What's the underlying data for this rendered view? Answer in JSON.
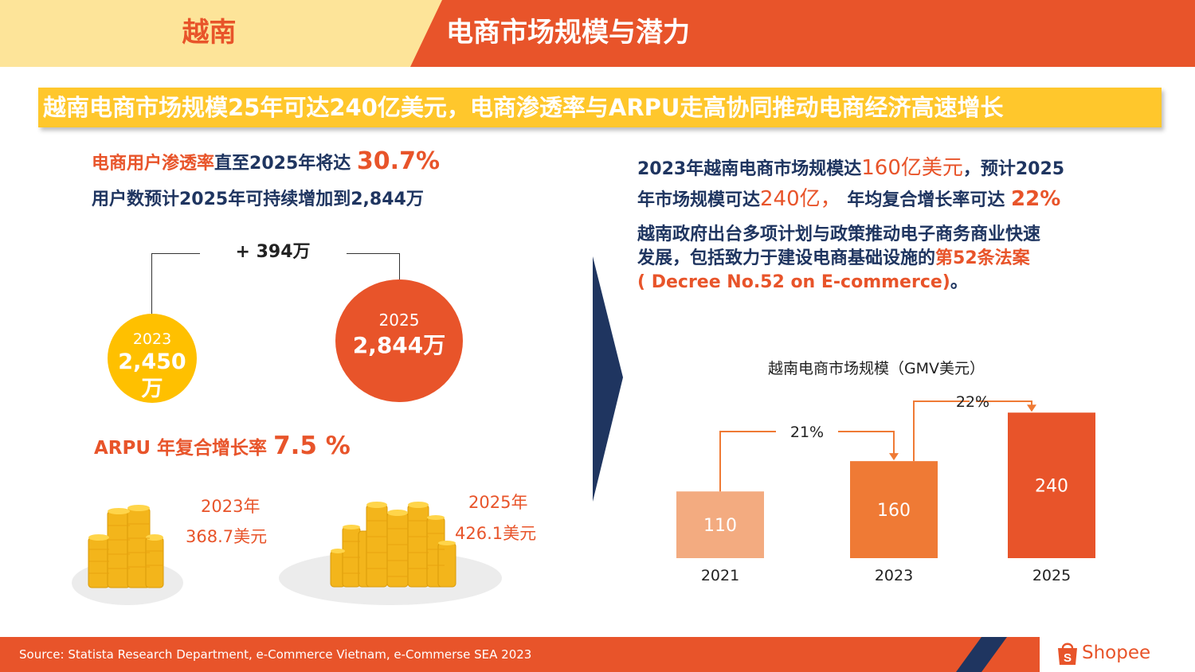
{
  "header": {
    "country": "越南",
    "title": "电商市场规模与潜力"
  },
  "banner": {
    "text": "越南电商市场规模25年可达240亿美元，电商渗透率与ARPU走高协同推动电商经济高速增长"
  },
  "penetration": {
    "label_orange": "电商用户渗透率",
    "label_navy": "直至2025年将达",
    "value": "30.7%",
    "users_text": "用户数预计2025年可持续增加到2,844万"
  },
  "users": {
    "delta": "+ 394万",
    "c2023": {
      "year": "2023",
      "value": "2,450万"
    },
    "c2025": {
      "year": "2025",
      "value": "2,844万"
    }
  },
  "arpu": {
    "label": "ARPU 年复合增长率",
    "value": "7.5 %",
    "y2023": {
      "year": "2023年",
      "value": "368.7美元"
    },
    "y2025": {
      "year": "2025年",
      "value": "426.1美元"
    }
  },
  "right": {
    "l1a": "2023年越南电商市场规模达",
    "l1b": "160亿美元",
    "l1c": "，预计2025",
    "l2a": "年市场规模可达",
    "l2b": "240亿，",
    "l2c": "年均复合增长率可达",
    "l2d": "22%",
    "p2l1": "越南政府出台多项计划与政策推动电子商务商业快速",
    "p2l2a": "发展，包括致力于建设电商基础设施的",
    "p2l2b": "第52条法案",
    "p2l3a": "( Decree No.52 on E-commerce)",
    "p2l3b": "。"
  },
  "chart_data": {
    "type": "bar",
    "title": "越南电商市场规模（GMV美元）",
    "categories": [
      "2021",
      "2023",
      "2025"
    ],
    "values": [
      110,
      160,
      240
    ],
    "bar_labels": [
      "110",
      "160",
      "240"
    ],
    "growth": [
      {
        "from": "2021",
        "to": "2023",
        "label": "21%"
      },
      {
        "from": "2023",
        "to": "2025",
        "label": "22%"
      }
    ],
    "colors": [
      "#f3ab80",
      "#ef7a35",
      "#e8542a"
    ],
    "ylim": [
      0,
      260
    ],
    "xlabel": "",
    "ylabel": ""
  },
  "footer": {
    "source": "Source: Statista Research Department, e-Commerce  Vietnam, e-Commerse SEA 2023",
    "brand": "Shopee"
  },
  "colors": {
    "accent": "#e8542a",
    "yellow": "#ffc72c",
    "navy": "#1f3560",
    "light_yellow": "#fde499"
  }
}
